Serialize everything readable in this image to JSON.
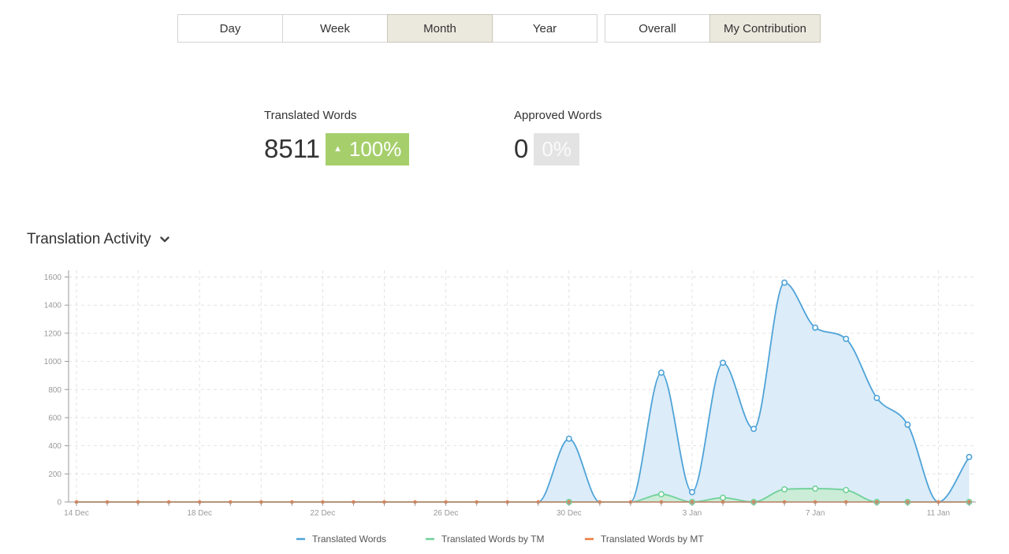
{
  "period_tabs": [
    "Day",
    "Week",
    "Month",
    "Year"
  ],
  "period_active": "Month",
  "scope_tabs": [
    "Overall",
    "My Contribution"
  ],
  "scope_active": "My Contribution",
  "stats": {
    "translated": {
      "label": "Translated Words",
      "value": "8511",
      "change": "100%"
    },
    "approved": {
      "label": "Approved Words",
      "value": "0",
      "change": "0%"
    }
  },
  "section_title": "Translation Activity",
  "colors": {
    "translated": "#4ea3d8",
    "tm": "#6fd19a",
    "mt": "#f07a3f",
    "area": "#dcecf8",
    "tm_area": "#c9ecd3"
  },
  "chart_data": {
    "type": "area",
    "x": [
      "14 Dec",
      "15 Dec",
      "16 Dec",
      "17 Dec",
      "18 Dec",
      "19 Dec",
      "20 Dec",
      "21 Dec",
      "22 Dec",
      "23 Dec",
      "24 Dec",
      "25 Dec",
      "26 Dec",
      "27 Dec",
      "28 Dec",
      "29 Dec",
      "30 Dec",
      "31 Dec",
      "1 Jan",
      "2 Jan",
      "3 Jan",
      "4 Jan",
      "5 Jan",
      "6 Jan",
      "7 Jan",
      "8 Jan",
      "9 Jan",
      "10 Jan",
      "11 Jan",
      "12 Jan"
    ],
    "x_tick_labels": [
      "14 Dec",
      "18 Dec",
      "22 Dec",
      "26 Dec",
      "30 Dec",
      "3 Jan",
      "7 Jan",
      "11 Jan"
    ],
    "y_ticks": [
      0,
      200,
      400,
      600,
      800,
      1000,
      1200,
      1400,
      1600
    ],
    "ylim": [
      0,
      1700
    ],
    "grid": true,
    "legend_position": "bottom",
    "series": [
      {
        "name": "Translated Words",
        "values": [
          0,
          0,
          0,
          0,
          0,
          0,
          0,
          0,
          0,
          0,
          0,
          0,
          0,
          0,
          0,
          0,
          450,
          0,
          0,
          920,
          70,
          990,
          520,
          1560,
          1240,
          1160,
          740,
          550,
          0,
          320
        ]
      },
      {
        "name": "Translated Words by TM",
        "values": [
          0,
          0,
          0,
          0,
          0,
          0,
          0,
          0,
          0,
          0,
          0,
          0,
          0,
          0,
          0,
          0,
          0,
          0,
          0,
          55,
          0,
          30,
          0,
          90,
          95,
          85,
          0,
          0,
          0,
          0
        ]
      },
      {
        "name": "Translated Words by MT",
        "values": [
          0,
          0,
          0,
          0,
          0,
          0,
          0,
          0,
          0,
          0,
          0,
          0,
          0,
          0,
          0,
          0,
          0,
          0,
          0,
          0,
          0,
          0,
          0,
          0,
          0,
          0,
          0,
          0,
          0,
          0
        ]
      }
    ]
  }
}
